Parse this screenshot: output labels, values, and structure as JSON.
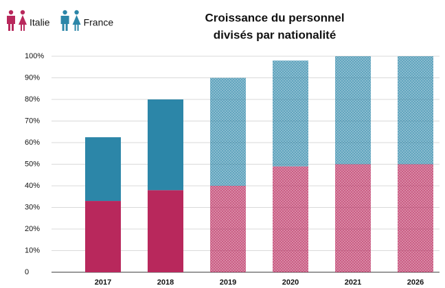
{
  "chart_data": {
    "type": "stacked_bar",
    "title_lines": [
      "Croissance du personnel",
      "divisés par nationalité"
    ],
    "categories": [
      "2017",
      "2018",
      "2019",
      "2020",
      "2021",
      "2026"
    ],
    "series": [
      {
        "name": "Italie",
        "color": "#b8285c",
        "values": [
          33,
          38,
          40,
          49,
          50,
          50
        ]
      },
      {
        "name": "France",
        "color": "#2c86a8",
        "values": [
          29.5,
          42,
          50,
          49,
          50,
          50
        ]
      }
    ],
    "pattern": [
      false,
      false,
      true,
      true,
      true,
      true
    ],
    "ylim": [
      0,
      100
    ],
    "yticks": [
      0,
      {
        "value": 10,
        "label": "10%"
      },
      {
        "value": 20,
        "label": "20%"
      },
      {
        "value": 30,
        "label": "30%"
      },
      {
        "value": 40,
        "label": "40%"
      },
      {
        "value": 50,
        "label": "50%"
      },
      {
        "value": 60,
        "label": "60%"
      },
      {
        "value": 70,
        "label": "70%"
      },
      {
        "value": 80,
        "label": "80%"
      },
      {
        "value": 90,
        "label": "90%"
      },
      {
        "value": 100,
        "label": "100%"
      }
    ],
    "grid": true,
    "legend": "top-left"
  }
}
